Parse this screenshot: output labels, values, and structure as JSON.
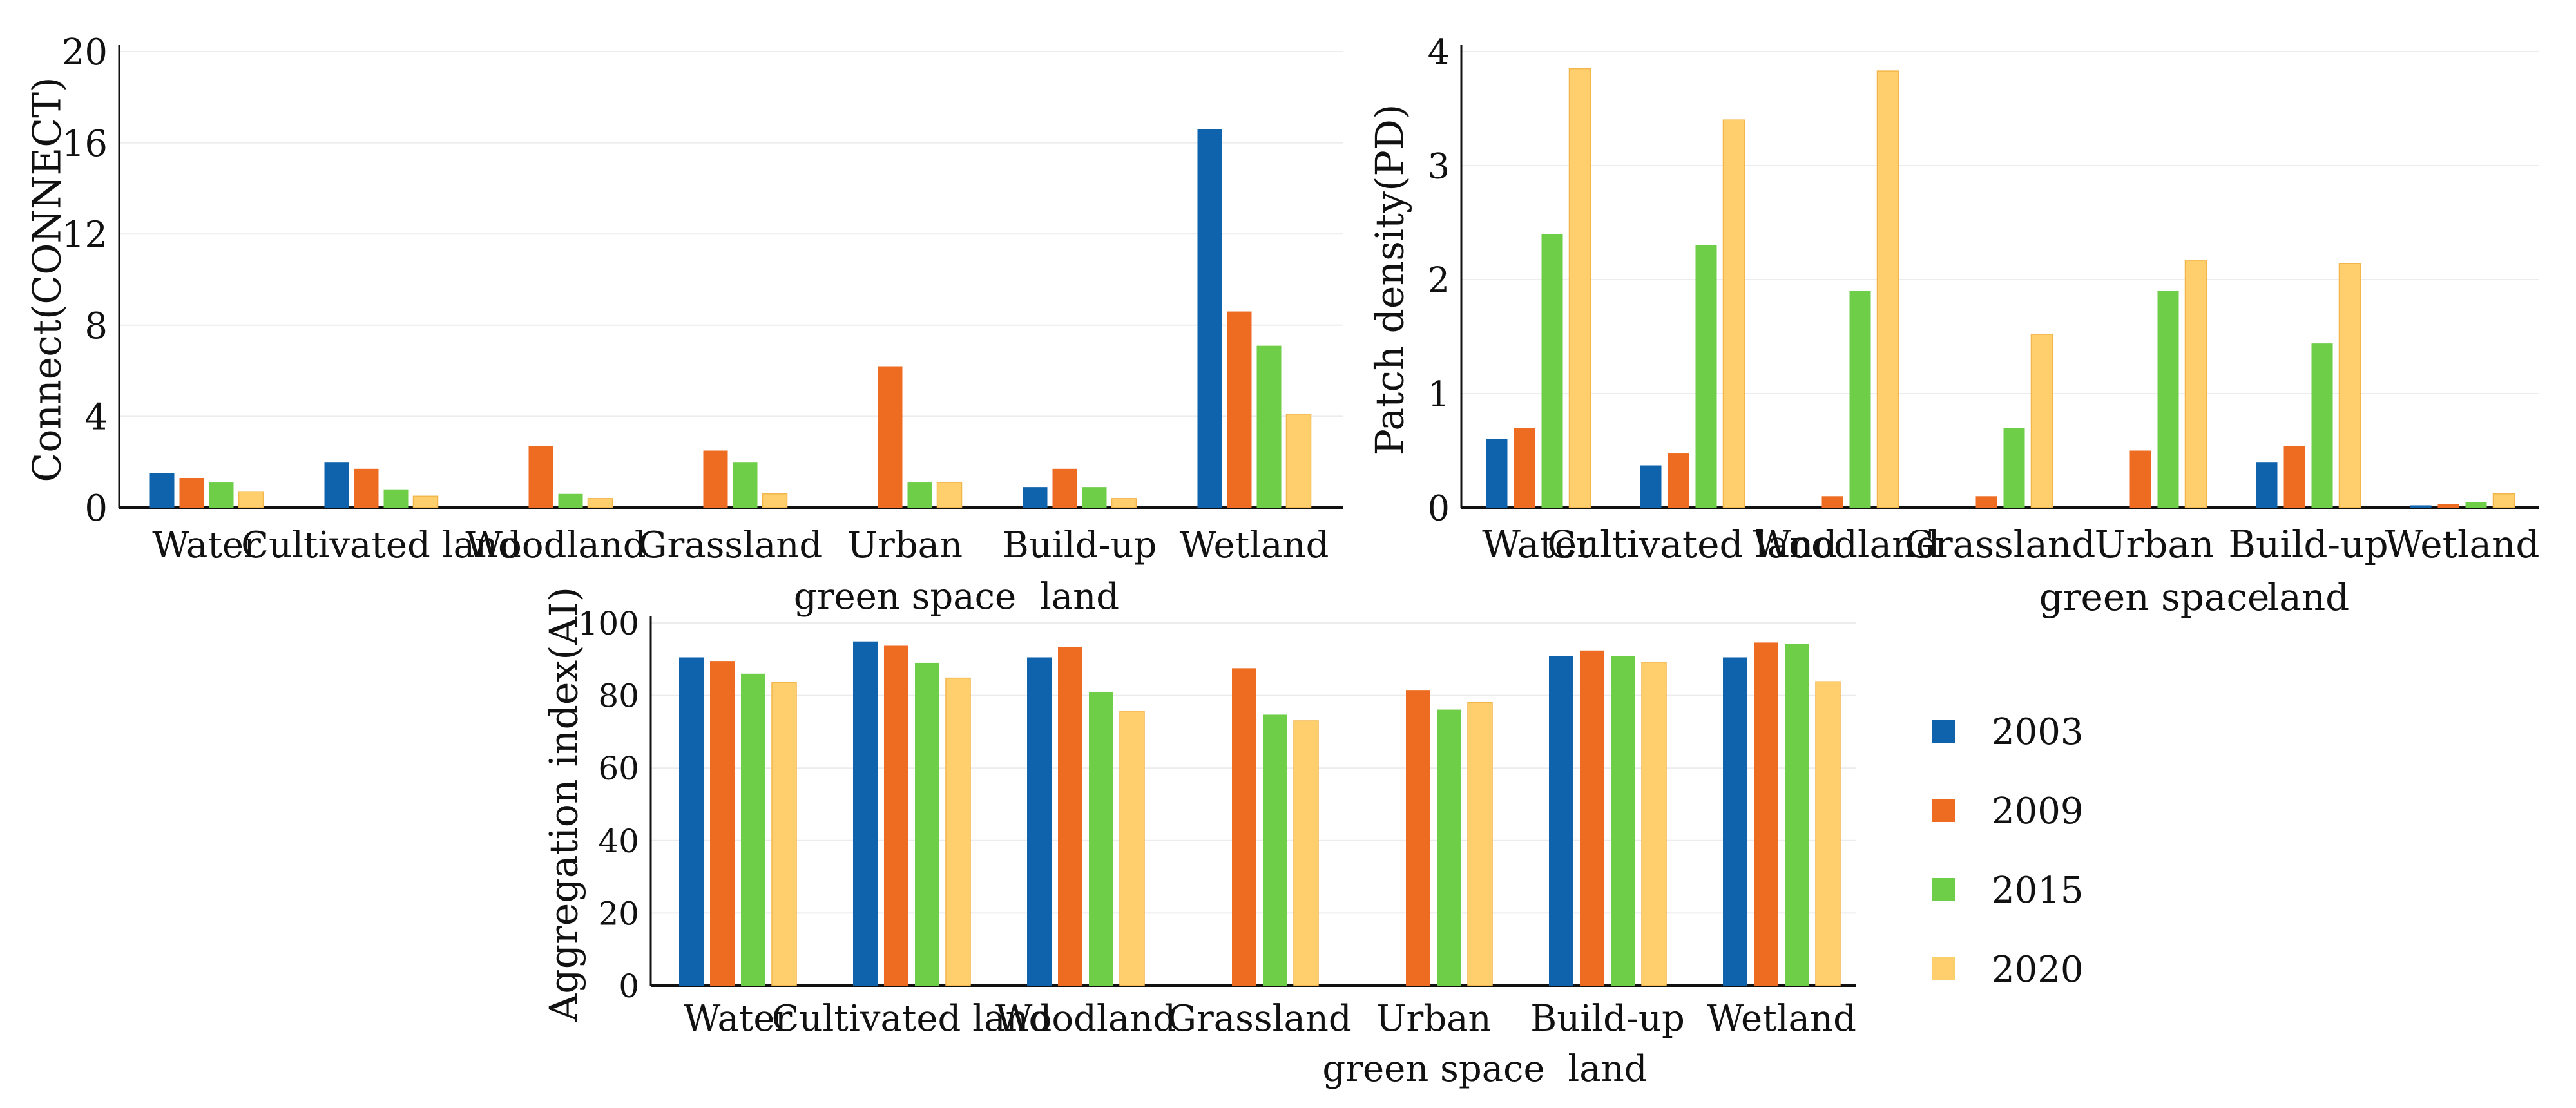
{
  "colors": {
    "2003": "#0f63ad",
    "2009": "#ee6b22",
    "2015": "#6fce48",
    "2020": "#ffce6d"
  },
  "legend": {
    "items": [
      {
        "label": "2003",
        "color": "#0f63ad"
      },
      {
        "label": "2009",
        "color": "#ee6b22"
      },
      {
        "label": "2015",
        "color": "#6fce48"
      },
      {
        "label": "2020",
        "color": "#ffce6d"
      }
    ]
  },
  "chart_data": [
    {
      "type": "bar",
      "title": "",
      "xlabel": "",
      "ylabel": "Connect(CONNECT)",
      "ylim": [
        0,
        20
      ],
      "yticks": [
        "0",
        "4",
        "8",
        "12",
        "16",
        "20"
      ],
      "categories": [
        [
          "Water"
        ],
        [
          "Cultivated land"
        ],
        [
          "Woodland"
        ],
        [
          "Grassland"
        ],
        [
          "Urban",
          "green space"
        ],
        [
          "Build-up",
          "land"
        ],
        [
          "Wetland"
        ]
      ],
      "series": [
        {
          "name": "2003",
          "values": [
            1.5,
            2.0,
            0,
            0,
            0,
            0.9,
            16.6
          ]
        },
        {
          "name": "2009",
          "values": [
            1.3,
            1.7,
            2.7,
            2.5,
            6.2,
            1.7,
            8.6
          ]
        },
        {
          "name": "2015",
          "values": [
            1.1,
            0.8,
            0.6,
            2.0,
            1.1,
            0.9,
            7.1
          ]
        },
        {
          "name": "2020",
          "values": [
            0.7,
            0.5,
            0.4,
            0.6,
            1.1,
            0.4,
            4.1
          ]
        }
      ]
    },
    {
      "type": "bar",
      "title": "",
      "xlabel": "",
      "ylabel": "Patch density(PD)",
      "ylim": [
        0,
        4
      ],
      "yticks": [
        "0",
        "1",
        "2",
        "3",
        "4"
      ],
      "categories": [
        [
          "Water"
        ],
        [
          "Cultivated land"
        ],
        [
          "Woodland"
        ],
        [
          "Grassland"
        ],
        [
          "Urban",
          "green space"
        ],
        [
          "Build-up",
          "land"
        ],
        [
          "Wetland"
        ]
      ],
      "series": [
        {
          "name": "2003",
          "values": [
            0.6,
            0.37,
            0,
            0,
            0,
            0.4,
            0.02
          ]
        },
        {
          "name": "2009",
          "values": [
            0.7,
            0.48,
            0.1,
            0.1,
            0.5,
            0.54,
            0.03
          ]
        },
        {
          "name": "2015",
          "values": [
            2.4,
            2.3,
            1.9,
            0.7,
            1.9,
            1.44,
            0.05
          ]
        },
        {
          "name": "2020",
          "values": [
            3.85,
            3.4,
            3.83,
            1.52,
            2.17,
            2.14,
            0.12
          ]
        }
      ]
    },
    {
      "type": "bar",
      "title": "",
      "xlabel": "",
      "ylabel": "Aggregation index(AI)",
      "ylim": [
        0,
        100
      ],
      "yticks": [
        "0",
        "20",
        "40",
        "60",
        "80",
        "100"
      ],
      "categories": [
        [
          "Water"
        ],
        [
          "Cultivated land"
        ],
        [
          "Woodland"
        ],
        [
          "Grassland"
        ],
        [
          "Urban",
          "green space"
        ],
        [
          "Build-up",
          "land"
        ],
        [
          "Wetland"
        ]
      ],
      "series": [
        {
          "name": "2003",
          "values": [
            90.5,
            94.9,
            90.5,
            0,
            0,
            90.9,
            90.5
          ]
        },
        {
          "name": "2009",
          "values": [
            89.5,
            93.7,
            93.4,
            87.5,
            81.5,
            92.4,
            94.6
          ]
        },
        {
          "name": "2015",
          "values": [
            86.0,
            89.0,
            81.0,
            74.7,
            76.1,
            90.8,
            94.2
          ]
        },
        {
          "name": "2020",
          "values": [
            83.6,
            84.8,
            75.7,
            73.0,
            78.1,
            89.2,
            83.8
          ]
        }
      ]
    }
  ]
}
